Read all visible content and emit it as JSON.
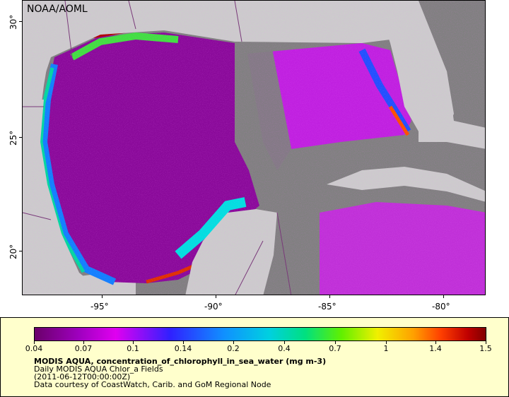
{
  "credit": "NOAA/AOML",
  "map": {
    "x_ticks": [
      {
        "label": "-95°"
      },
      {
        "label": "-90°"
      },
      {
        "label": "-85°"
      },
      {
        "label": "-80°"
      }
    ],
    "y_ticks": [
      {
        "label": "30°"
      },
      {
        "label": "25°"
      },
      {
        "label": "20°"
      }
    ],
    "colors": {
      "land": "#cccccc",
      "nodata": "#808080",
      "border": "#7a3a7a"
    }
  },
  "legend": {
    "colorbar_ticks": [
      "0.04",
      "0.07",
      "0.1",
      "0.14",
      "0.2",
      "0.4",
      "0.7",
      "1",
      "1.4",
      "1.5"
    ],
    "title": "MODIS AQUA, concentration_of_chlorophyll_in_sea_water (mg m-3)",
    "dataset": "Daily MODIS AQUA Chlor_a Fields",
    "time": "(2011-06-12T00:00:00Z)",
    "source": "Data courtesy of CoastWatch, Carib. and GoM Regional Node"
  }
}
